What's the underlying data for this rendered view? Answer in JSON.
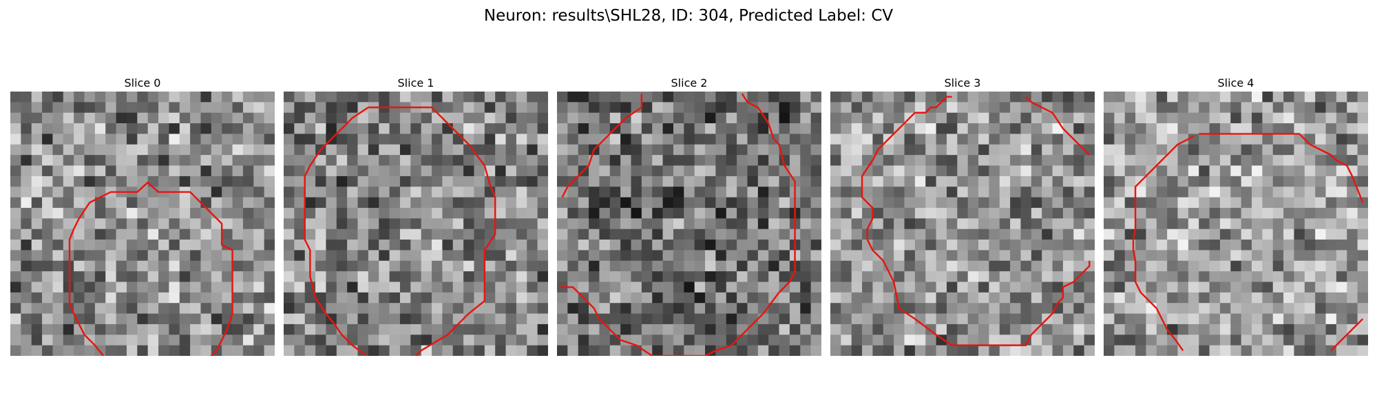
{
  "suptitle": "Neuron: results\\SHL28, ID: 304, Predicted Label: CV",
  "slices": [
    {
      "title": "Slice 0",
      "seed": 11,
      "base": 0.55,
      "contour": [
        [
          9.5,
          9.5
        ],
        [
          12,
          9.5
        ],
        [
          13,
          8.6
        ],
        [
          14,
          9.5
        ],
        [
          17,
          9.5
        ],
        [
          20,
          12.5
        ],
        [
          20,
          14.5
        ],
        [
          21,
          15
        ],
        [
          21,
          18
        ],
        [
          21,
          21
        ],
        [
          20.5,
          22.5
        ],
        [
          20,
          23.5
        ],
        [
          19.5,
          24.5
        ],
        [
          18.5,
          25.5
        ],
        [
          16.5,
          27
        ],
        [
          13,
          27.5
        ],
        [
          12.2,
          27.5
        ],
        [
          11.5,
          27
        ],
        [
          10,
          26.5
        ],
        [
          8.8,
          25
        ],
        [
          8,
          24
        ],
        [
          7,
          23
        ],
        [
          6,
          21
        ],
        [
          5.6,
          20
        ],
        [
          5.6,
          14
        ],
        [
          6,
          13
        ],
        [
          6.5,
          12
        ],
        [
          7.5,
          10.5
        ]
      ]
    },
    {
      "title": "Slice 1",
      "seed": 23,
      "base": 0.52,
      "contour": [
        [
          8,
          1.5
        ],
        [
          12.5,
          1.5
        ],
        [
          14,
          1.5
        ],
        [
          17.5,
          5
        ],
        [
          19,
          7
        ],
        [
          19.5,
          8.8
        ],
        [
          20,
          10
        ],
        [
          20,
          13.5
        ],
        [
          19,
          15
        ],
        [
          19,
          19.8
        ],
        [
          17.5,
          21
        ],
        [
          16.5,
          22
        ],
        [
          15.5,
          23
        ],
        [
          13,
          24.5
        ],
        [
          12.5,
          25
        ],
        [
          11.5,
          25.5
        ],
        [
          8.5,
          25.5
        ],
        [
          6.5,
          24
        ],
        [
          5.5,
          23
        ],
        [
          4.8,
          22
        ],
        [
          4,
          21
        ],
        [
          3,
          19.5
        ],
        [
          2.5,
          17.5
        ],
        [
          2.5,
          15
        ],
        [
          2,
          14
        ],
        [
          2,
          8
        ],
        [
          2.5,
          7
        ],
        [
          3.5,
          5.5
        ],
        [
          5,
          4
        ],
        [
          6.5,
          2.5
        ]
      ]
    },
    {
      "title": "Slice 2",
      "seed": 37,
      "base": 0.45,
      "contour": [
        [
          0.5,
          10
        ],
        [
          1,
          9
        ],
        [
          2,
          8
        ],
        [
          3,
          7
        ],
        [
          3.5,
          5.5
        ],
        [
          5,
          4
        ],
        [
          6.5,
          2.5
        ],
        [
          8,
          1.5
        ],
        [
          8,
          0.2
        ],
        null,
        [
          17.5,
          0.2
        ],
        [
          18,
          1
        ],
        [
          19,
          1.5
        ],
        [
          20,
          3
        ],
        [
          20.5,
          4.5
        ],
        [
          21,
          5
        ],
        [
          21.5,
          7
        ],
        [
          22.5,
          8.5
        ],
        [
          22.5,
          14
        ],
        [
          22.5,
          17
        ],
        [
          22,
          18
        ],
        [
          21,
          19
        ],
        [
          19.5,
          21
        ],
        [
          18.5,
          22
        ],
        [
          17.5,
          23
        ],
        [
          16.5,
          24
        ],
        [
          15,
          24.5
        ],
        [
          14,
          25
        ],
        [
          11.5,
          25
        ],
        [
          9,
          25
        ],
        [
          7.5,
          24
        ],
        [
          6,
          23.5
        ],
        [
          5,
          22.5
        ],
        [
          4,
          21.5
        ],
        [
          3.5,
          20.5
        ],
        [
          2.5,
          19.5
        ],
        [
          1.5,
          18.5
        ],
        [
          0.2,
          18.5
        ]
      ]
    },
    {
      "title": "Slice 3",
      "seed": 53,
      "base": 0.58,
      "contour": [
        [
          11.5,
          0.5
        ],
        [
          11,
          0.5
        ],
        [
          10,
          1.5
        ],
        [
          9.5,
          1.5
        ],
        [
          9,
          2
        ],
        [
          8,
          2
        ],
        [
          6.5,
          3.5
        ],
        [
          5,
          5
        ],
        [
          4.5,
          5.5
        ],
        [
          4,
          6.5
        ],
        [
          3,
          8
        ],
        [
          3,
          10
        ],
        [
          4,
          11
        ],
        [
          4,
          12
        ],
        [
          3.5,
          13
        ],
        [
          3.5,
          14
        ],
        [
          4,
          15
        ],
        [
          5,
          16
        ],
        [
          5.5,
          17
        ],
        [
          6,
          18
        ],
        [
          6.5,
          20.5
        ],
        [
          8,
          21.5
        ],
        [
          10,
          23
        ],
        [
          11.5,
          24
        ],
        [
          12,
          24
        ],
        [
          15.5,
          24
        ],
        [
          18.5,
          24
        ],
        [
          19,
          23
        ],
        [
          20,
          22
        ],
        [
          21,
          21
        ],
        [
          21.5,
          20
        ],
        [
          22,
          19.5
        ],
        [
          22,
          18.5
        ],
        [
          23,
          18
        ],
        [
          24,
          17
        ],
        [
          24.5,
          16.5
        ],
        [
          24.5,
          16
        ],
        null,
        [
          18.5,
          0.5
        ],
        [
          19,
          1
        ],
        [
          20,
          1.5
        ],
        [
          21,
          2
        ],
        [
          22,
          3.5
        ],
        [
          23,
          4.5
        ],
        [
          24,
          5.5
        ],
        [
          24.5,
          6
        ]
      ]
    },
    {
      "title": "Slice 4",
      "seed": 71,
      "base": 0.6,
      "contour": [
        [
          9,
          4
        ],
        [
          12.5,
          4
        ],
        [
          18.5,
          4
        ],
        [
          19.5,
          5
        ],
        [
          20.5,
          5.5
        ],
        [
          21.5,
          6
        ],
        [
          22,
          6.5
        ],
        [
          23,
          7
        ],
        [
          23.5,
          8
        ],
        [
          24.5,
          10.5
        ],
        null,
        [
          7.5,
          24.5
        ],
        [
          6.8,
          23.5
        ],
        [
          6,
          22.5
        ],
        [
          5.5,
          21.5
        ],
        [
          5,
          20.5
        ],
        [
          4,
          19.5
        ],
        [
          3.5,
          19
        ],
        [
          3,
          18
        ],
        [
          3,
          17
        ],
        [
          3,
          16
        ],
        [
          2.8,
          15
        ],
        [
          2.8,
          14
        ],
        [
          3,
          13
        ],
        [
          3,
          12
        ],
        [
          3,
          10
        ],
        [
          3,
          9
        ],
        [
          3.5,
          8.5
        ],
        [
          4,
          8
        ],
        [
          4.5,
          7.5
        ],
        [
          5,
          7
        ],
        [
          6,
          6
        ],
        [
          7,
          5
        ],
        [
          8,
          4.5
        ],
        [
          8.5,
          4.2
        ],
        null,
        [
          21.5,
          24.5
        ],
        [
          22,
          24
        ],
        [
          23,
          23
        ],
        [
          24.5,
          21.5
        ]
      ]
    }
  ]
}
